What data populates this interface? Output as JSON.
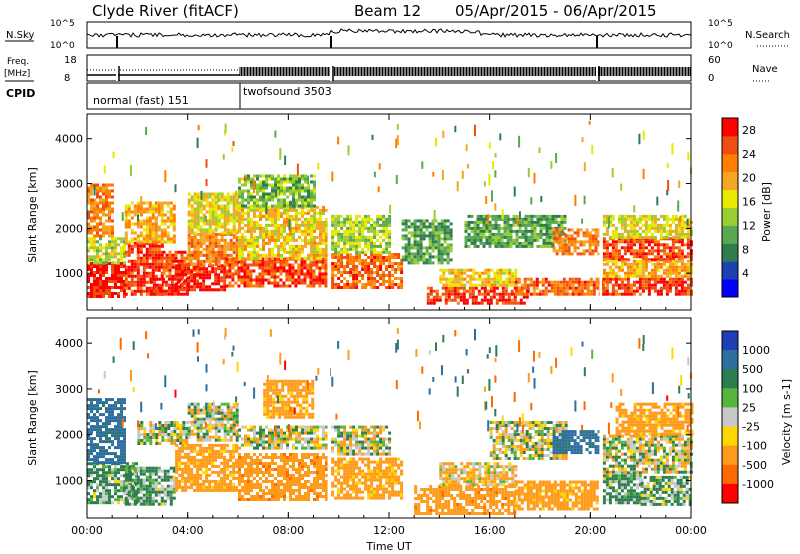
{
  "header": {
    "station": "Clyde River (fitACF)",
    "beam": "Beam 12",
    "dates": "05/Apr/2015 - 06/Apr/2015"
  },
  "strips": {
    "nsky_label": "N.Sky",
    "nsky_ticks": [
      "10^5",
      "10^0"
    ],
    "nsearch_label": "N.Search",
    "freq_label": "Freq.",
    "freq_unit": "[MHz]",
    "freq_ticks": [
      "18",
      "8"
    ],
    "nave_label": "Nave",
    "nave_ticks": [
      "60",
      "0"
    ],
    "cpid_label": "CPID",
    "cpid_segments": [
      "normal (fast) 151",
      "twofsound 3503"
    ]
  },
  "colors": {
    "power": [
      "#0000ff",
      "#1e40b0",
      "#2e7d4f",
      "#5aa852",
      "#9acd32",
      "#e8e800",
      "#f5a623",
      "#ff7f00",
      "#f04e10",
      "#ff0000"
    ],
    "velocity": [
      "#1f3fb8",
      "#2f6fa0",
      "#2e7d4f",
      "#55b53d",
      "#c8c8c8",
      "#ffd700",
      "#ff9b1a",
      "#ff6a00",
      "#ff0000"
    ]
  },
  "chart_data": [
    {
      "type": "heatmap",
      "title": "Power",
      "xlabel": "Time UT",
      "ylabel": "Slant Range [km]",
      "x_ticks": [
        "00:00",
        "04:00",
        "08:00",
        "12:00",
        "16:00",
        "20:00",
        "00:00"
      ],
      "y_ticks": [
        "1000",
        "2000",
        "3000",
        "4000"
      ],
      "ylim": [
        180,
        4550
      ],
      "xlim_hours": [
        0,
        24
      ],
      "colorbar": {
        "label": "Power [dB]",
        "ticks": [
          "4",
          "8",
          "12",
          "16",
          "20",
          "24",
          "28"
        ],
        "range": [
          0,
          30
        ]
      },
      "regions": [
        {
          "t": [
            0,
            1.5
          ],
          "r": [
            500,
            1250
          ],
          "v": 28
        },
        {
          "t": [
            0,
            1.5
          ],
          "r": [
            1250,
            1800
          ],
          "v": 15
        },
        {
          "t": [
            0,
            1
          ],
          "r": [
            1800,
            3000
          ],
          "v": 22
        },
        {
          "t": [
            1.5,
            3
          ],
          "r": [
            550,
            1700
          ],
          "v": 27
        },
        {
          "t": [
            1.5,
            3.5
          ],
          "r": [
            1700,
            2600
          ],
          "v": 20
        },
        {
          "t": [
            2.5,
            4
          ],
          "r": [
            500,
            900
          ],
          "v": 29
        },
        {
          "t": [
            3,
            4.5
          ],
          "r": [
            900,
            1500
          ],
          "v": 25
        },
        {
          "t": [
            3.5,
            5.5
          ],
          "r": [
            650,
            1200
          ],
          "v": 28
        },
        {
          "t": [
            4,
            6
          ],
          "r": [
            1200,
            1900
          ],
          "v": 22
        },
        {
          "t": [
            4,
            6
          ],
          "r": [
            1900,
            2800
          ],
          "v": 17
        },
        {
          "t": [
            5.5,
            9.5
          ],
          "r": [
            700,
            1350
          ],
          "v": 26
        },
        {
          "t": [
            6,
            9.5
          ],
          "r": [
            1350,
            2500
          ],
          "v": 18
        },
        {
          "t": [
            6,
            9
          ],
          "r": [
            2500,
            3200
          ],
          "v": 12
        },
        {
          "t": [
            9.7,
            12.5
          ],
          "r": [
            700,
            1450
          ],
          "v": 24
        },
        {
          "t": [
            9.7,
            12
          ],
          "r": [
            1450,
            2300
          ],
          "v": 14
        },
        {
          "t": [
            12.5,
            14.5
          ],
          "r": [
            1200,
            2200
          ],
          "v": 10
        },
        {
          "t": [
            13.5,
            17.5
          ],
          "r": [
            300,
            700
          ],
          "v": 27
        },
        {
          "t": [
            14,
            17
          ],
          "r": [
            700,
            1100
          ],
          "v": 18
        },
        {
          "t": [
            15,
            19
          ],
          "r": [
            1600,
            2300
          ],
          "v": 10
        },
        {
          "t": [
            17,
            20.5
          ],
          "r": [
            500,
            900
          ],
          "v": 24
        },
        {
          "t": [
            18.5,
            20.3
          ],
          "r": [
            1400,
            2000
          ],
          "v": 22
        },
        {
          "t": [
            20.5,
            24
          ],
          "r": [
            500,
            900
          ],
          "v": 27
        },
        {
          "t": [
            20.5,
            24
          ],
          "r": [
            1300,
            1800
          ],
          "v": 26
        },
        {
          "t": [
            20.5,
            24
          ],
          "r": [
            1800,
            2300
          ],
          "v": 16
        },
        {
          "t": [
            20.5,
            24
          ],
          "r": [
            900,
            1300
          ],
          "v": 20
        }
      ]
    },
    {
      "type": "heatmap",
      "title": "Velocity",
      "xlabel": "Time UT",
      "ylabel": "Slant Range [km]",
      "x_ticks": [
        "00:00",
        "04:00",
        "08:00",
        "12:00",
        "16:00",
        "20:00",
        "00:00"
      ],
      "y_ticks": [
        "1000",
        "2000",
        "3000",
        "4000"
      ],
      "ylim": [
        180,
        4550
      ],
      "xlim_hours": [
        0,
        24
      ],
      "colorbar": {
        "label": "Velocity [m s-1]",
        "ticks": [
          "1000",
          "500",
          "100",
          "25",
          "-25",
          "-100",
          "-500",
          "-1000"
        ],
        "range": [
          -1000,
          1000
        ]
      },
      "regions": [
        {
          "t": [
            0,
            2
          ],
          "r": [
            500,
            1400
          ],
          "v": 80
        },
        {
          "t": [
            0,
            1.5
          ],
          "r": [
            1400,
            2800
          ],
          "v": 400
        },
        {
          "t": [
            1.5,
            3.5
          ],
          "r": [
            500,
            1300
          ],
          "v": 90
        },
        {
          "t": [
            2,
            4
          ],
          "r": [
            1800,
            2300
          ],
          "v": 0
        },
        {
          "t": [
            3.5,
            6
          ],
          "r": [
            800,
            1800
          ],
          "v": -150
        },
        {
          "t": [
            4,
            6
          ],
          "r": [
            1900,
            2700
          ],
          "v": 0
        },
        {
          "t": [
            6,
            9.5
          ],
          "r": [
            600,
            1600
          ],
          "v": -200
        },
        {
          "t": [
            6,
            9.5
          ],
          "r": [
            1700,
            2200
          ],
          "v": 0
        },
        {
          "t": [
            7,
            9
          ],
          "r": [
            2400,
            3200
          ],
          "v": -150
        },
        {
          "t": [
            9.7,
            12.5
          ],
          "r": [
            600,
            1500
          ],
          "v": -150
        },
        {
          "t": [
            9.7,
            12
          ],
          "r": [
            1600,
            2200
          ],
          "v": 0
        },
        {
          "t": [
            13,
            17
          ],
          "r": [
            250,
            900
          ],
          "v": -200
        },
        {
          "t": [
            14,
            17
          ],
          "r": [
            900,
            1400
          ],
          "v": -60
        },
        {
          "t": [
            16,
            19
          ],
          "r": [
            1500,
            2300
          ],
          "v": 0
        },
        {
          "t": [
            17,
            20.3
          ],
          "r": [
            400,
            1000
          ],
          "v": -150
        },
        {
          "t": [
            18.5,
            20.3
          ],
          "r": [
            1600,
            2100
          ],
          "v": 400
        },
        {
          "t": [
            20.5,
            22
          ],
          "r": [
            500,
            1200
          ],
          "v": 80
        },
        {
          "t": [
            20.5,
            24
          ],
          "r": [
            1200,
            2000
          ],
          "v": 0
        },
        {
          "t": [
            22,
            24
          ],
          "r": [
            500,
            1100
          ],
          "v": 60
        },
        {
          "t": [
            21,
            24
          ],
          "r": [
            2000,
            2700
          ],
          "v": -150
        }
      ]
    }
  ]
}
